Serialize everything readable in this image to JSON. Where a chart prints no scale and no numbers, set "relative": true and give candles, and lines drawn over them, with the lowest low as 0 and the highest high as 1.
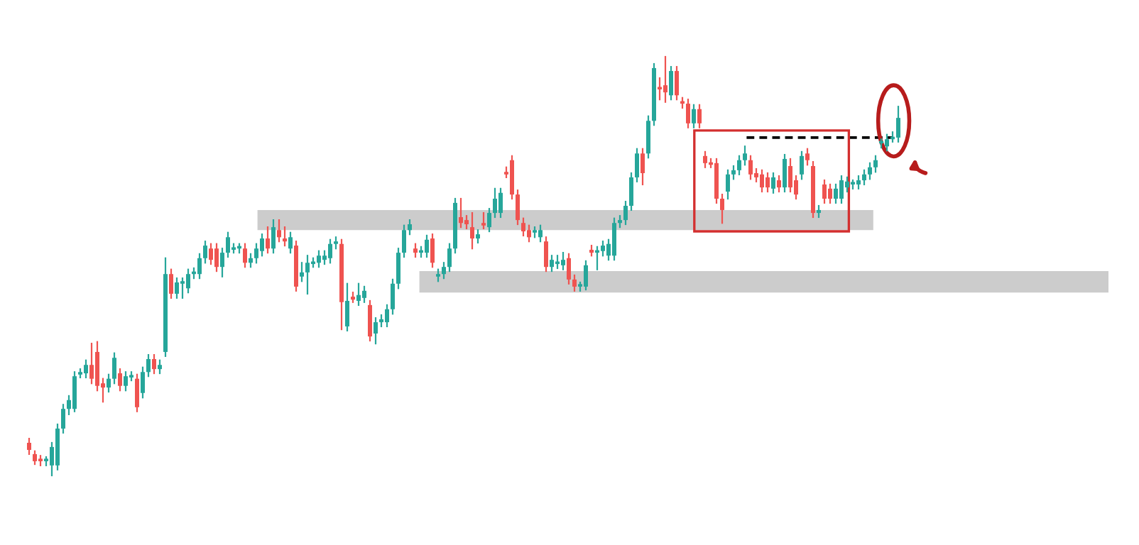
{
  "chart_data": {
    "type": "candlestick",
    "relative": true,
    "categories": [
      null,
      null,
      null,
      null,
      null,
      null,
      null,
      null,
      null,
      null,
      null,
      null,
      null,
      null,
      null,
      null,
      null,
      null,
      null,
      null,
      null,
      null,
      null,
      null,
      null,
      null,
      null,
      null,
      null,
      null,
      null,
      null,
      null,
      null,
      null,
      null,
      null,
      null,
      null,
      null,
      null,
      null,
      null,
      null,
      null,
      null,
      null,
      null,
      null,
      null,
      null,
      null,
      null,
      null,
      null,
      null,
      null,
      null,
      null,
      null,
      null,
      null,
      null,
      null,
      null,
      null,
      null,
      null,
      null,
      null,
      null,
      null,
      null,
      null,
      null,
      null,
      null,
      null,
      null,
      null,
      null,
      null,
      null,
      null,
      null,
      null,
      null,
      null,
      null,
      null,
      null,
      null,
      null,
      null,
      null,
      null,
      null,
      null,
      null,
      null,
      null,
      null,
      null,
      null,
      null,
      null,
      null,
      null,
      null,
      null,
      null,
      null,
      null,
      null,
      null,
      null,
      null,
      null,
      null,
      null,
      null,
      null,
      null,
      null,
      null,
      null,
      null,
      null,
      null,
      null,
      null,
      null,
      null,
      null,
      null,
      null,
      null,
      null,
      null,
      null,
      null,
      null,
      null,
      null,
      null,
      null,
      null,
      null,
      null,
      null,
      null,
      null,
      null,
      null
    ],
    "colors": [
      "#ef5350",
      "#ef5350",
      "#ef5350",
      "#26a69a",
      "#26a69a",
      "#26a69a",
      "#26a69a",
      "#26a69a",
      "#26a69a",
      "#26a69a",
      "#26a69a",
      "#ef5350",
      "#ef5350",
      "#ef5350",
      "#26a69a",
      "#26a69a",
      "#ef5350",
      "#26a69a",
      "#26a69a",
      "#ef5350",
      "#26a69a",
      "#26a69a",
      "#ef5350",
      "#26a69a",
      "#26a69a",
      "#ef5350",
      "#26a69a",
      "#26a69a",
      "#26a69a",
      "#26a69a",
      "#26a69a",
      "#26a69a",
      "#ef5350",
      "#ef5350",
      "#26a69a",
      "#26a69a",
      "#26a69a",
      "#26a69a",
      "#ef5350",
      "#26a69a",
      "#26a69a",
      "#26a69a",
      "#ef5350",
      "#26a69a",
      "#ef5350",
      "#ef5350",
      "#26a69a",
      "#ef5350",
      "#26a69a",
      "#26a69a",
      "#26a69a",
      "#26a69a",
      "#26a69a",
      "#26a69a",
      "#26a69a",
      "#ef5350",
      "#26a69a",
      "#ef5350",
      "#26a69a",
      "#26a69a",
      "#ef5350",
      "#26a69a",
      "#26a69a",
      "#26a69a",
      "#26a69a",
      "#26a69a",
      "#26a69a",
      "#26a69a",
      "#ef5350",
      "#26a69a",
      "#26a69a",
      "#ef5350",
      "#26a69a",
      "#26a69a",
      "#26a69a",
      "#26a69a",
      "#ef5350",
      "#ef5350",
      "#ef5350",
      "#26a69a",
      "#ef5350",
      "#26a69a",
      "#26a69a",
      "#26a69a",
      "#ef5350",
      "#ef5350",
      "#ef5350",
      "#ef5350",
      "#ef5350",
      "#26a69a",
      "#26a69a",
      "#ef5350",
      "#26a69a",
      "#26a69a",
      "#26a69a",
      "#ef5350",
      "#ef5350",
      "#26a69a",
      "#26a69a",
      "#ef5350",
      "#26a69a",
      "#26a69a",
      "#26a69a",
      "#26a69a",
      "#26a69a",
      "#26a69a",
      "#26a69a",
      "#26a69a",
      "#ef5350",
      "#26a69a",
      "#26a69a",
      "#ef5350",
      "#ef5350",
      "#26a69a",
      "#ef5350",
      "#ef5350",
      "#ef5350",
      "#26a69a",
      "#ef5350",
      "#ef5350",
      "#ef5350",
      "#ef5350",
      "#ef5350",
      "#26a69a",
      "#26a69a",
      "#26a69a",
      "#26a69a",
      "#ef5350",
      "#ef5350",
      "#ef5350",
      "#ef5350",
      "#26a69a",
      "#ef5350",
      "#26a69a",
      "#ef5350",
      "#ef5350",
      "#26a69a",
      "#ef5350",
      "#ef5350",
      "#26a69a",
      "#ef5350",
      "#ef5350",
      "#26a69a",
      "#26a69a",
      "#26a69a",
      "#26a69a",
      "#26a69a",
      "#26a69a",
      "#26a69a",
      "#26a69a",
      "#26a69a",
      "#26a69a",
      "#26a69a",
      "#26a69a"
    ],
    "ohlc": [
      [
        0.078,
        0.088,
        0.051,
        0.061
      ],
      [
        0.051,
        0.058,
        0.027,
        0.034
      ],
      [
        0.037,
        0.047,
        0.024,
        0.034
      ],
      [
        0.034,
        0.044,
        0.024,
        0.037
      ],
      [
        0.024,
        0.078,
        0,
        0.068
      ],
      [
        0.024,
        0.122,
        0.014,
        0.112
      ],
      [
        0.112,
        0.169,
        0.102,
        0.159
      ],
      [
        0.159,
        0.19,
        0.146,
        0.18
      ],
      [
        0.159,
        0.247,
        0.153,
        0.237
      ],
      [
        0.241,
        0.254,
        0.234,
        0.244
      ],
      [
        0.244,
        0.275,
        0.234,
        0.264
      ],
      [
        0.264,
        0.315,
        0.22,
        0.231
      ],
      [
        0.295,
        0.319,
        0.203,
        0.214
      ],
      [
        0.22,
        0.231,
        0.176,
        0.21
      ],
      [
        0.21,
        0.241,
        0.2,
        0.231
      ],
      [
        0.231,
        0.292,
        0.22,
        0.281
      ],
      [
        0.244,
        0.254,
        0.203,
        0.214
      ],
      [
        0.214,
        0.247,
        0.203,
        0.237
      ],
      [
        0.234,
        0.247,
        0.227,
        0.237
      ],
      [
        0.231,
        0.241,
        0.153,
        0.163
      ],
      [
        0.197,
        0.258,
        0.186,
        0.247
      ],
      [
        0.247,
        0.288,
        0.237,
        0.278
      ],
      [
        0.278,
        0.288,
        0.244,
        0.254
      ],
      [
        0.254,
        0.275,
        0.244,
        0.264
      ],
      [
        0.295,
        0.519,
        0.285,
        0.481
      ],
      [
        0.481,
        0.492,
        0.424,
        0.434
      ],
      [
        0.434,
        0.471,
        0.424,
        0.461
      ],
      [
        0.458,
        0.471,
        0.424,
        0.461
      ],
      [
        0.447,
        0.492,
        0.437,
        0.481
      ],
      [
        0.481,
        0.495,
        0.471,
        0.485
      ],
      [
        0.481,
        0.529,
        0.471,
        0.519
      ],
      [
        0.519,
        0.559,
        0.508,
        0.549
      ],
      [
        0.542,
        0.553,
        0.505,
        0.515
      ],
      [
        0.542,
        0.553,
        0.488,
        0.498
      ],
      [
        0.498,
        0.542,
        0.475,
        0.532
      ],
      [
        0.532,
        0.58,
        0.522,
        0.569
      ],
      [
        0.539,
        0.553,
        0.532,
        0.542
      ],
      [
        0.542,
        0.553,
        0.532,
        0.546
      ],
      [
        0.542,
        0.553,
        0.498,
        0.508
      ],
      [
        0.508,
        0.529,
        0.498,
        0.519
      ],
      [
        0.519,
        0.553,
        0.508,
        0.542
      ],
      [
        0.536,
        0.576,
        0.525,
        0.566
      ],
      [
        0.566,
        0.593,
        0.532,
        0.542
      ],
      [
        0.542,
        0.61,
        0.532,
        0.593
      ],
      [
        0.586,
        0.61,
        0.559,
        0.569
      ],
      [
        0.566,
        0.593,
        0.549,
        0.559
      ],
      [
        0.542,
        0.58,
        0.532,
        0.569
      ],
      [
        0.549,
        0.559,
        0.441,
        0.451
      ],
      [
        0.475,
        0.508,
        0.464,
        0.485
      ],
      [
        0.485,
        0.525,
        0.434,
        0.508
      ],
      [
        0.505,
        0.519,
        0.498,
        0.508
      ],
      [
        0.508,
        0.536,
        0.498,
        0.525
      ],
      [
        0.515,
        0.536,
        0.505,
        0.525
      ],
      [
        0.519,
        0.563,
        0.508,
        0.553
      ],
      [
        0.553,
        0.569,
        0.542,
        0.559
      ],
      [
        0.553,
        0.563,
        0.349,
        0.414
      ],
      [
        0.356,
        0.458,
        0.346,
        0.417
      ],
      [
        0.427,
        0.437,
        0.414,
        0.42
      ],
      [
        0.417,
        0.458,
        0.407,
        0.431
      ],
      [
        0.424,
        0.451,
        0.414,
        0.441
      ],
      [
        0.407,
        0.417,
        0.322,
        0.332
      ],
      [
        0.339,
        0.376,
        0.315,
        0.366
      ],
      [
        0.366,
        0.383,
        0.356,
        0.373
      ],
      [
        0.366,
        0.407,
        0.356,
        0.397
      ],
      [
        0.397,
        0.468,
        0.386,
        0.458
      ],
      [
        0.458,
        0.542,
        0.447,
        0.532
      ],
      [
        0.532,
        0.597,
        0.522,
        0.586
      ],
      [
        0.586,
        0.61,
        0.576,
        0.6
      ],
      [
        0.542,
        0.553,
        0.522,
        0.532
      ],
      [
        0.532,
        0.546,
        0.522,
        0.536
      ],
      [
        0.532,
        0.573,
        0.522,
        0.563
      ],
      [
        0.566,
        0.576,
        0.498,
        0.508
      ],
      [
        0.475,
        0.492,
        0.464,
        0.481
      ],
      [
        0.481,
        0.508,
        0.471,
        0.498
      ],
      [
        0.498,
        0.553,
        0.488,
        0.542
      ],
      [
        0.542,
        0.661,
        0.532,
        0.651
      ],
      [
        0.617,
        0.661,
        0.593,
        0.603
      ],
      [
        0.61,
        0.62,
        0.59,
        0.6
      ],
      [
        0.593,
        0.627,
        0.542,
        0.566
      ],
      [
        0.566,
        0.586,
        0.556,
        0.576
      ],
      [
        0.603,
        0.627,
        0.59,
        0.597
      ],
      [
        0.593,
        0.637,
        0.583,
        0.627
      ],
      [
        0.627,
        0.685,
        0.617,
        0.661
      ],
      [
        0.627,
        0.685,
        0.617,
        0.675
      ],
      [
        0.725,
        0.736,
        0.712,
        0.719
      ],
      [
        0.753,
        0.763,
        0.661,
        0.671
      ],
      [
        0.671,
        0.681,
        0.6,
        0.61
      ],
      [
        0.603,
        0.614,
        0.573,
        0.583
      ],
      [
        0.586,
        0.597,
        0.559,
        0.569
      ],
      [
        0.58,
        0.593,
        0.569,
        0.583
      ],
      [
        0.569,
        0.597,
        0.559,
        0.586
      ],
      [
        0.559,
        0.569,
        0.488,
        0.498
      ],
      [
        0.498,
        0.525,
        0.488,
        0.515
      ],
      [
        0.505,
        0.525,
        0.495,
        0.508
      ],
      [
        0.502,
        0.532,
        0.492,
        0.515
      ],
      [
        0.519,
        0.529,
        0.458,
        0.468
      ],
      [
        0.468,
        0.478,
        0.441,
        0.451
      ],
      [
        0.451,
        0.461,
        0.441,
        0.454
      ],
      [
        0.451,
        0.512,
        0.444,
        0.502
      ],
      [
        0.539,
        0.549,
        0.525,
        0.532
      ],
      [
        0.532,
        0.546,
        0.492,
        0.536
      ],
      [
        0.536,
        0.559,
        0.525,
        0.549
      ],
      [
        0.525,
        0.563,
        0.515,
        0.553
      ],
      [
        0.525,
        0.614,
        0.515,
        0.603
      ],
      [
        0.603,
        0.62,
        0.593,
        0.61
      ],
      [
        0.61,
        0.654,
        0.6,
        0.644
      ],
      [
        0.644,
        0.722,
        0.634,
        0.712
      ],
      [
        0.712,
        0.78,
        0.702,
        0.769
      ],
      [
        0.769,
        0.78,
        0.695,
        0.722
      ],
      [
        0.769,
        0.858,
        0.759,
        0.847
      ],
      [
        0.847,
        0.983,
        0.837,
        0.973
      ],
      [
        0.925,
        0.949,
        0.898,
        0.922
      ],
      [
        0.932,
        1,
        0.892,
        0.915
      ],
      [
        0.908,
        0.976,
        0.898,
        0.966
      ],
      [
        0.966,
        0.976,
        0.898,
        0.908
      ],
      [
        0.892,
        0.902,
        0.878,
        0.888
      ],
      [
        0.888,
        0.898,
        0.831,
        0.841
      ],
      [
        0.841,
        0.885,
        0.831,
        0.875
      ],
      [
        0.875,
        0.885,
        0.831,
        0.841
      ],
      [
        0.763,
        0.773,
        0.736,
        0.746
      ],
      [
        0.746,
        0.756,
        0.736,
        0.742
      ],
      [
        0.746,
        0.756,
        0.651,
        0.661
      ],
      [
        0.661,
        0.671,
        0.603,
        0.634
      ],
      [
        0.678,
        0.729,
        0.661,
        0.719
      ],
      [
        0.719,
        0.739,
        0.708,
        0.729
      ],
      [
        0.729,
        0.763,
        0.719,
        0.753
      ],
      [
        0.753,
        0.786,
        0.742,
        0.769
      ],
      [
        0.753,
        0.763,
        0.708,
        0.719
      ],
      [
        0.722,
        0.732,
        0.702,
        0.712
      ],
      [
        0.719,
        0.729,
        0.678,
        0.688
      ],
      [
        0.712,
        0.722,
        0.678,
        0.688
      ],
      [
        0.685,
        0.722,
        0.675,
        0.712
      ],
      [
        0.705,
        0.715,
        0.678,
        0.688
      ],
      [
        0.688,
        0.766,
        0.678,
        0.756
      ],
      [
        0.739,
        0.756,
        0.678,
        0.688
      ],
      [
        0.705,
        0.715,
        0.661,
        0.671
      ],
      [
        0.719,
        0.773,
        0.708,
        0.763
      ],
      [
        0.769,
        0.78,
        0.742,
        0.753
      ],
      [
        0.739,
        0.749,
        0.617,
        0.627
      ],
      [
        0.627,
        0.644,
        0.617,
        0.634
      ],
      [
        0.695,
        0.705,
        0.651,
        0.661
      ],
      [
        0.685,
        0.695,
        0.651,
        0.661
      ],
      [
        0.661,
        0.695,
        0.651,
        0.685
      ],
      [
        0.661,
        0.715,
        0.651,
        0.705
      ],
      [
        0.688,
        0.712,
        0.678,
        0.702
      ],
      [
        0.695,
        0.705,
        0.685,
        0.698
      ],
      [
        0.695,
        0.715,
        0.685,
        0.705
      ],
      [
        0.705,
        0.729,
        0.695,
        0.719
      ],
      [
        0.719,
        0.746,
        0.708,
        0.736
      ],
      [
        0.736,
        0.763,
        0.725,
        0.753
      ],
      [
        0.793,
        0.803,
        0.783,
        0.797
      ],
      [
        0.786,
        0.814,
        0.776,
        0.803
      ],
      [
        0.803,
        0.82,
        0.797,
        0.807
      ],
      [
        0.807,
        0.881,
        0.797,
        0.854
      ]
    ],
    "bands": [
      {
        "axis": "y",
        "from": 0.586,
        "to": 0.634,
        "color": "#cccccc"
      },
      {
        "axis": "y",
        "from": 0.437,
        "to": 0.488,
        "color": "#cccccc"
      }
    ],
    "ref_lines": [
      {
        "axis": "y",
        "value": 0.807,
        "color": "#000000",
        "line_style": "dashed"
      }
    ]
  }
}
